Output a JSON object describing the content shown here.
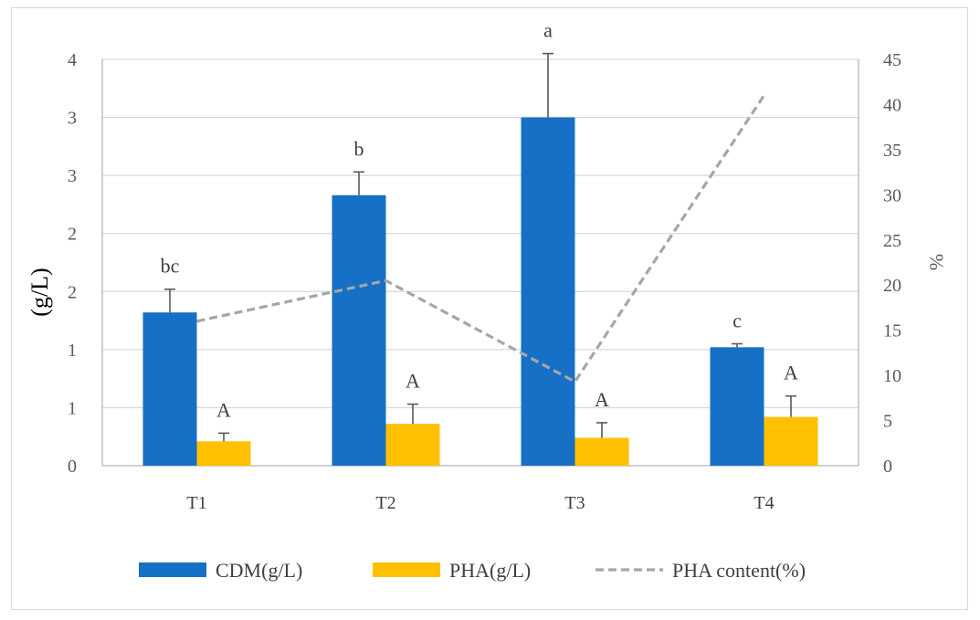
{
  "chart_data": {
    "type": "bar",
    "categories": [
      "T1",
      "T2",
      "T3",
      "T4"
    ],
    "series": [
      {
        "name": "CDM(g/L)",
        "kind": "bar",
        "axis": "left",
        "color": "#1570c6",
        "values": [
          1.32,
          2.33,
          3.0,
          1.02
        ],
        "errors": [
          0.2,
          0.2,
          0.55,
          0.03
        ],
        "labels": [
          "bc",
          "b",
          "a",
          "c"
        ]
      },
      {
        "name": "PHA(g/L)",
        "kind": "bar",
        "axis": "left",
        "color": "#ffc000",
        "values": [
          0.21,
          0.36,
          0.24,
          0.42
        ],
        "errors": [
          0.07,
          0.17,
          0.13,
          0.18
        ],
        "labels": [
          "A",
          "A",
          "A",
          "A"
        ]
      },
      {
        "name": "PHA content(%)",
        "kind": "line",
        "axis": "right",
        "color": "#a6a6a6",
        "dashed": true,
        "values": [
          16,
          20.5,
          9.3,
          41
        ]
      }
    ],
    "left_axis": {
      "title": "(g/L)",
      "ylim": [
        0,
        3.5
      ],
      "ticks": [
        0,
        0.5,
        1,
        1.5,
        2,
        2.5,
        3,
        3.5
      ],
      "tick_labels": [
        "0",
        "1",
        "1",
        "2",
        "2",
        "3",
        "3",
        "4"
      ]
    },
    "right_axis": {
      "title": "%",
      "ylim": [
        0,
        45
      ],
      "ticks": [
        0,
        5,
        10,
        15,
        20,
        25,
        30,
        35,
        40,
        45
      ],
      "tick_labels": [
        "0",
        "5",
        "10",
        "15",
        "20",
        "25",
        "30",
        "35",
        "40",
        "45"
      ]
    },
    "grid": true,
    "legend_position": "bottom"
  }
}
